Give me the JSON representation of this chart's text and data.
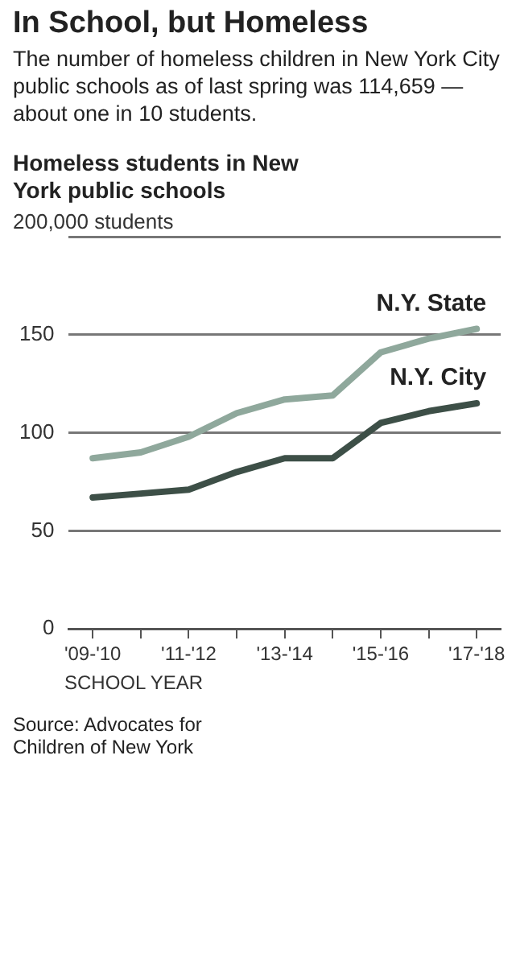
{
  "chart_data": {
    "type": "line",
    "title": "In School, but Homeless",
    "subtitle": "The number of homeless children in New York City public schools as of last spring was 114,659 — about one in 10 students.",
    "ylabel": "Homeless students in New York public schools",
    "xlabel": "SCHOOL YEAR",
    "annotations": [
      "200,000 students",
      "Source: Advocates for Children of New York"
    ],
    "categories": [
      "'09-'10",
      null,
      "'11-'12",
      null,
      "'13-'14",
      null,
      "'15-'16",
      null,
      "'17-'18"
    ],
    "series": [
      {
        "name": "N.Y. State",
        "color": "#8fa89c",
        "values": [
          87,
          90,
          98,
          110,
          117,
          119,
          141,
          148,
          153
        ]
      },
      {
        "name": "N.Y. City",
        "color": "#3d4f47",
        "values": [
          67,
          69,
          71,
          80,
          87,
          87,
          105,
          111,
          115
        ]
      }
    ],
    "ylim": [
      0,
      200
    ],
    "yticks": [
      0,
      50,
      100,
      150,
      {
        "value": 200,
        "label": null
      }
    ],
    "grid": "y",
    "legend": false,
    "marker": "none",
    "line_style": "solid"
  }
}
